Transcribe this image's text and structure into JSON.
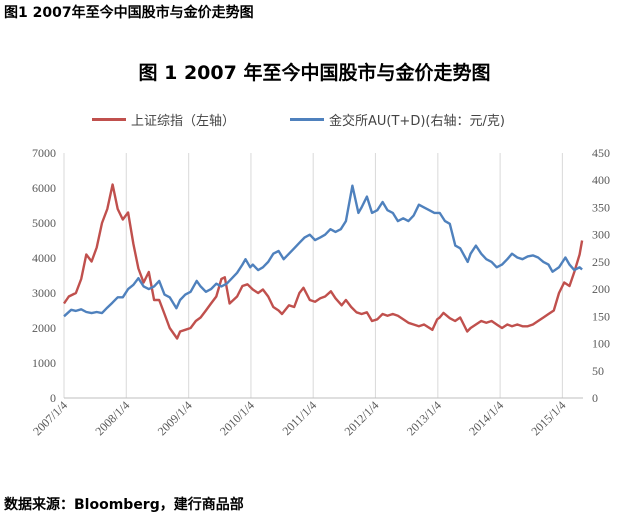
{
  "header": {
    "caption": "图1  2007年至今中国股市与金价走势图"
  },
  "footer": {
    "source": "数据来源：Bloomberg，建行商品部"
  },
  "chart_data": {
    "type": "line",
    "title": "图 1   2007 年至今中国股市与金价走势图",
    "xlabel": "",
    "ylabel_left": "",
    "ylabel_right": "",
    "x_ticks": [
      "2007/1/4",
      "2008/1/4",
      "2009/1/4",
      "2010/1/4",
      "2011/1/4",
      "2012/1/4",
      "2013/1/4",
      "2014/1/4",
      "2015/1/4"
    ],
    "y_left": {
      "min": 0,
      "max": 7000,
      "step": 1000,
      "ticks": [
        "0",
        "1000",
        "2000",
        "3000",
        "4000",
        "5000",
        "6000",
        "7000"
      ]
    },
    "y_right": {
      "min": 0,
      "max": 450,
      "step": 50,
      "ticks": [
        "0",
        "50",
        "100",
        "150",
        "200",
        "250",
        "300",
        "350",
        "400",
        "450"
      ]
    },
    "grid": "vertical",
    "legend_position": "top",
    "series": [
      {
        "name": "上证综指（左轴）",
        "axis": "left",
        "color": "#c0504d",
        "points": [
          [
            "2007-01-04",
            2700
          ],
          [
            "2007-02-01",
            2900
          ],
          [
            "2007-03-15",
            3000
          ],
          [
            "2007-04-15",
            3400
          ],
          [
            "2007-05-15",
            4100
          ],
          [
            "2007-06-15",
            3900
          ],
          [
            "2007-07-15",
            4300
          ],
          [
            "2007-08-15",
            5000
          ],
          [
            "2007-09-15",
            5400
          ],
          [
            "2007-10-16",
            6100
          ],
          [
            "2007-11-15",
            5400
          ],
          [
            "2007-12-15",
            5100
          ],
          [
            "2008-01-15",
            5300
          ],
          [
            "2008-02-15",
            4400
          ],
          [
            "2008-03-15",
            3700
          ],
          [
            "2008-04-15",
            3300
          ],
          [
            "2008-05-15",
            3600
          ],
          [
            "2008-06-15",
            2800
          ],
          [
            "2008-07-15",
            2800
          ],
          [
            "2008-08-15",
            2400
          ],
          [
            "2008-09-15",
            2000
          ],
          [
            "2008-10-28",
            1700
          ],
          [
            "2008-11-15",
            1900
          ],
          [
            "2008-12-15",
            1950
          ],
          [
            "2009-01-15",
            2000
          ],
          [
            "2009-02-15",
            2200
          ],
          [
            "2009-03-15",
            2300
          ],
          [
            "2009-04-15",
            2500
          ],
          [
            "2009-05-15",
            2700
          ],
          [
            "2009-06-15",
            2900
          ],
          [
            "2009-07-15",
            3400
          ],
          [
            "2009-08-04",
            3450
          ],
          [
            "2009-09-01",
            2700
          ],
          [
            "2009-10-15",
            2900
          ],
          [
            "2009-11-15",
            3200
          ],
          [
            "2009-12-15",
            3250
          ],
          [
            "2010-01-15",
            3100
          ],
          [
            "2010-02-15",
            3000
          ],
          [
            "2010-03-15",
            3100
          ],
          [
            "2010-04-15",
            2900
          ],
          [
            "2010-05-15",
            2600
          ],
          [
            "2010-06-15",
            2500
          ],
          [
            "2010-07-05",
            2400
          ],
          [
            "2010-08-15",
            2650
          ],
          [
            "2010-09-15",
            2600
          ],
          [
            "2010-10-15",
            3000
          ],
          [
            "2010-11-08",
            3150
          ],
          [
            "2010-12-15",
            2800
          ],
          [
            "2011-01-15",
            2750
          ],
          [
            "2011-02-15",
            2850
          ],
          [
            "2011-03-15",
            2900
          ],
          [
            "2011-04-18",
            3050
          ],
          [
            "2011-05-15",
            2850
          ],
          [
            "2011-06-20",
            2650
          ],
          [
            "2011-07-15",
            2800
          ],
          [
            "2011-08-15",
            2600
          ],
          [
            "2011-09-15",
            2450
          ],
          [
            "2011-10-15",
            2400
          ],
          [
            "2011-11-15",
            2450
          ],
          [
            "2011-12-15",
            2200
          ],
          [
            "2012-01-15",
            2250
          ],
          [
            "2012-02-15",
            2400
          ],
          [
            "2012-03-15",
            2350
          ],
          [
            "2012-04-15",
            2400
          ],
          [
            "2012-05-15",
            2350
          ],
          [
            "2012-06-15",
            2250
          ],
          [
            "2012-07-15",
            2150
          ],
          [
            "2012-08-15",
            2100
          ],
          [
            "2012-09-15",
            2050
          ],
          [
            "2012-10-15",
            2100
          ],
          [
            "2012-12-03",
            1950
          ],
          [
            "2012-12-31",
            2250
          ],
          [
            "2013-01-15",
            2300
          ],
          [
            "2013-02-06",
            2430
          ],
          [
            "2013-03-15",
            2280
          ],
          [
            "2013-04-15",
            2200
          ],
          [
            "2013-05-15",
            2300
          ],
          [
            "2013-06-25",
            1900
          ],
          [
            "2013-07-15",
            2000
          ],
          [
            "2013-08-15",
            2100
          ],
          [
            "2013-09-15",
            2200
          ],
          [
            "2013-10-15",
            2150
          ],
          [
            "2013-11-15",
            2200
          ],
          [
            "2013-12-15",
            2100
          ],
          [
            "2014-01-15",
            2000
          ],
          [
            "2014-02-15",
            2100
          ],
          [
            "2014-03-15",
            2050
          ],
          [
            "2014-04-15",
            2100
          ],
          [
            "2014-05-15",
            2050
          ],
          [
            "2014-06-15",
            2050
          ],
          [
            "2014-07-15",
            2100
          ],
          [
            "2014-08-15",
            2200
          ],
          [
            "2014-09-15",
            2300
          ],
          [
            "2014-10-15",
            2400
          ],
          [
            "2014-11-15",
            2500
          ],
          [
            "2014-12-15",
            3000
          ],
          [
            "2015-01-15",
            3300
          ],
          [
            "2015-02-15",
            3200
          ],
          [
            "2015-03-15",
            3600
          ],
          [
            "2015-04-15",
            4100
          ],
          [
            "2015-04-30",
            4500
          ]
        ]
      },
      {
        "name": "金交所AU(T+D)(右轴：元/克)",
        "axis": "right",
        "color": "#4f81bd",
        "points": [
          [
            "2007-01-04",
            150
          ],
          [
            "2007-02-15",
            162
          ],
          [
            "2007-03-15",
            160
          ],
          [
            "2007-04-15",
            163
          ],
          [
            "2007-05-15",
            158
          ],
          [
            "2007-06-15",
            156
          ],
          [
            "2007-07-15",
            158
          ],
          [
            "2007-08-15",
            156
          ],
          [
            "2007-09-15",
            166
          ],
          [
            "2007-10-15",
            175
          ],
          [
            "2007-11-15",
            185
          ],
          [
            "2007-12-15",
            185
          ],
          [
            "2008-01-15",
            200
          ],
          [
            "2008-02-15",
            208
          ],
          [
            "2008-03-15",
            220
          ],
          [
            "2008-04-15",
            205
          ],
          [
            "2008-05-15",
            200
          ],
          [
            "2008-06-15",
            205
          ],
          [
            "2008-07-15",
            215
          ],
          [
            "2008-08-15",
            190
          ],
          [
            "2008-09-15",
            185
          ],
          [
            "2008-10-24",
            165
          ],
          [
            "2008-11-15",
            180
          ],
          [
            "2008-12-15",
            190
          ],
          [
            "2009-01-15",
            195
          ],
          [
            "2009-02-20",
            215
          ],
          [
            "2009-03-15",
            205
          ],
          [
            "2009-04-15",
            195
          ],
          [
            "2009-05-15",
            200
          ],
          [
            "2009-06-15",
            210
          ],
          [
            "2009-07-15",
            205
          ],
          [
            "2009-08-15",
            210
          ],
          [
            "2009-09-15",
            220
          ],
          [
            "2009-10-15",
            230
          ],
          [
            "2009-11-15",
            245
          ],
          [
            "2009-12-03",
            255
          ],
          [
            "2009-12-31",
            240
          ],
          [
            "2010-01-15",
            245
          ],
          [
            "2010-02-15",
            235
          ],
          [
            "2010-03-15",
            240
          ],
          [
            "2010-04-15",
            250
          ],
          [
            "2010-05-15",
            265
          ],
          [
            "2010-06-15",
            270
          ],
          [
            "2010-07-15",
            255
          ],
          [
            "2010-08-15",
            265
          ],
          [
            "2010-09-15",
            275
          ],
          [
            "2010-10-15",
            285
          ],
          [
            "2010-11-15",
            295
          ],
          [
            "2010-12-15",
            300
          ],
          [
            "2011-01-15",
            290
          ],
          [
            "2011-02-15",
            295
          ],
          [
            "2011-03-15",
            300
          ],
          [
            "2011-04-15",
            310
          ],
          [
            "2011-05-15",
            305
          ],
          [
            "2011-06-15",
            310
          ],
          [
            "2011-07-15",
            325
          ],
          [
            "2011-08-22",
            390
          ],
          [
            "2011-09-26",
            340
          ],
          [
            "2011-10-15",
            350
          ],
          [
            "2011-11-15",
            370
          ],
          [
            "2011-12-15",
            340
          ],
          [
            "2012-01-15",
            345
          ],
          [
            "2012-02-15",
            360
          ],
          [
            "2012-03-15",
            345
          ],
          [
            "2012-04-15",
            340
          ],
          [
            "2012-05-15",
            325
          ],
          [
            "2012-06-15",
            330
          ],
          [
            "2012-07-15",
            325
          ],
          [
            "2012-08-15",
            335
          ],
          [
            "2012-09-15",
            355
          ],
          [
            "2012-10-15",
            350
          ],
          [
            "2012-11-15",
            345
          ],
          [
            "2012-12-15",
            340
          ],
          [
            "2013-01-15",
            340
          ],
          [
            "2013-02-15",
            325
          ],
          [
            "2013-03-15",
            320
          ],
          [
            "2013-04-16",
            280
          ],
          [
            "2013-05-15",
            275
          ],
          [
            "2013-06-28",
            250
          ],
          [
            "2013-07-15",
            265
          ],
          [
            "2013-08-15",
            280
          ],
          [
            "2013-09-15",
            265
          ],
          [
            "2013-10-15",
            255
          ],
          [
            "2013-11-15",
            250
          ],
          [
            "2013-12-15",
            240
          ],
          [
            "2014-01-15",
            245
          ],
          [
            "2014-02-15",
            255
          ],
          [
            "2014-03-15",
            265
          ],
          [
            "2014-04-15",
            258
          ],
          [
            "2014-05-15",
            255
          ],
          [
            "2014-06-15",
            260
          ],
          [
            "2014-07-15",
            262
          ],
          [
            "2014-08-15",
            258
          ],
          [
            "2014-09-15",
            250
          ],
          [
            "2014-10-15",
            245
          ],
          [
            "2014-11-07",
            232
          ],
          [
            "2014-12-15",
            240
          ],
          [
            "2015-01-22",
            258
          ],
          [
            "2015-02-15",
            245
          ],
          [
            "2015-03-15",
            235
          ],
          [
            "2015-04-15",
            240
          ],
          [
            "2015-04-30",
            236
          ]
        ]
      }
    ]
  }
}
